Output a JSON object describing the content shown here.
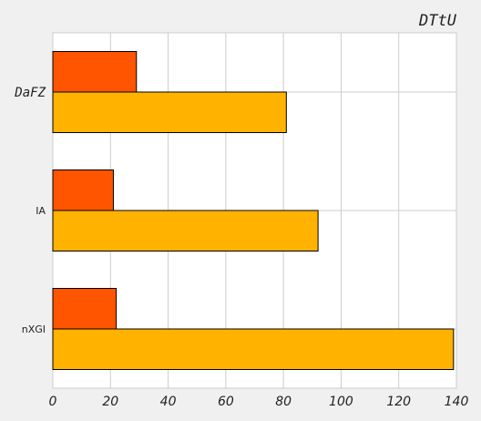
{
  "chart_data": {
    "type": "bar",
    "orientation": "horizontal",
    "title": "DTtU",
    "xlabel": "",
    "ylabel": "",
    "xlim": [
      0,
      140
    ],
    "x_ticks": [
      "0",
      "20",
      "40",
      "60",
      "80",
      "100",
      "120",
      "140"
    ],
    "categories": [
      "DaFZ",
      "IA",
      "nXGI"
    ],
    "series": [
      {
        "color": "#ff5500",
        "values": [
          29,
          21,
          22
        ]
      },
      {
        "color": "#ffb300",
        "values": [
          81,
          92,
          139
        ]
      }
    ],
    "grid": true,
    "legend": "none"
  }
}
